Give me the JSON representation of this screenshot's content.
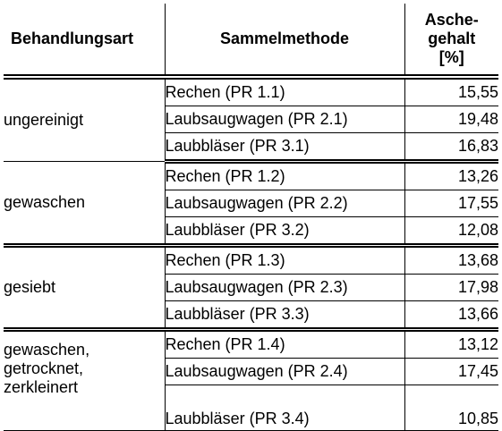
{
  "headers": {
    "treatment": "Behandlungsart",
    "method": "Sammelmethode",
    "ash_line1": "Asche-",
    "ash_line2": "gehalt",
    "ash_line3": "[%]"
  },
  "groups": [
    {
      "treatment_lines": [
        "ungereinigt"
      ],
      "rows": [
        {
          "method": "Rechen (PR 1.1)",
          "ash": "15,55"
        },
        {
          "method": "Laubsaugwagen (PR 2.1)",
          "ash": "19,48"
        },
        {
          "method": "Laubbläser (PR 3.1)",
          "ash": "16,83"
        }
      ]
    },
    {
      "treatment_lines": [
        "gewaschen"
      ],
      "rows": [
        {
          "method": "Rechen (PR 1.2)",
          "ash": "13,26"
        },
        {
          "method": "Laubsaugwagen (PR 2.2)",
          "ash": "17,55"
        },
        {
          "method": "Laubbläser (PR 3.2)",
          "ash": "12,08"
        }
      ]
    },
    {
      "treatment_lines": [
        "gesiebt"
      ],
      "rows": [
        {
          "method": "Rechen (PR 1.3)",
          "ash": "13,68"
        },
        {
          "method": "Laubsaugwagen (PR 2.3)",
          "ash": "17,98"
        },
        {
          "method": "Laubbläser (PR 3.3)",
          "ash": "13,66"
        }
      ]
    },
    {
      "treatment_lines": [
        "gewaschen,",
        "getrocknet,",
        "zerkleinert"
      ],
      "rows": [
        {
          "method": "Rechen (PR 1.4)",
          "ash": "13,12"
        },
        {
          "method": "Laubsaugwagen (PR 2.4)",
          "ash": "17,45"
        },
        {
          "method": "Laubbläser (PR 3.4)",
          "ash": "10,85"
        }
      ]
    }
  ]
}
